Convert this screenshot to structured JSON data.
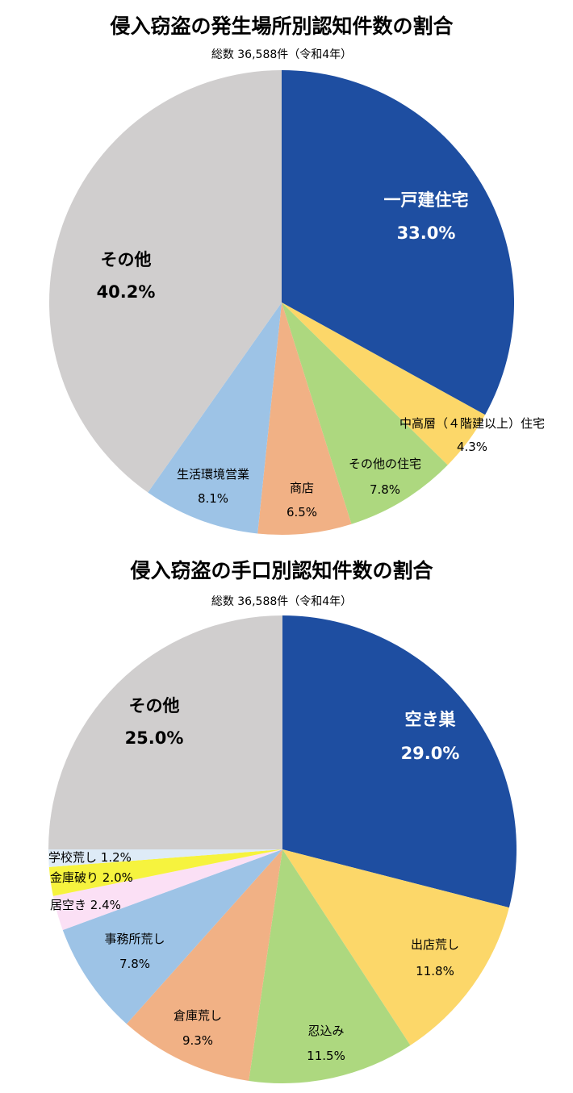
{
  "chart_data": [
    {
      "type": "pie",
      "title": "侵入窃盗の発生場所別認知件数の割合",
      "subtitle": "総数 36,588件（令和4年）",
      "unit": "%",
      "slices": [
        {
          "label": "一戸建住宅",
          "value": 33.0,
          "value_text": "33.0%",
          "color": "#1e4ea1"
        },
        {
          "label": "中高層（４階建以上）住宅",
          "value": 4.3,
          "value_text": "4.3%",
          "color": "#fcd769"
        },
        {
          "label": "その他の住宅",
          "value": 7.8,
          "value_text": "7.8%",
          "color": "#add87f"
        },
        {
          "label": "商店",
          "value": 6.5,
          "value_text": "6.5%",
          "color": "#f1b185"
        },
        {
          "label": "生活環境営業",
          "value": 8.1,
          "value_text": "8.1%",
          "color": "#9dc3e6"
        },
        {
          "label": "その他",
          "value": 40.2,
          "value_text": "40.2%",
          "color": "#d0cece"
        }
      ]
    },
    {
      "type": "pie",
      "title": "侵入窃盗の手口別認知件数の割合",
      "subtitle": "総数 36,588件（令和4年）",
      "unit": "%",
      "slices": [
        {
          "label": "空き巣",
          "value": 29.0,
          "value_text": "29.0%",
          "color": "#1e4ea1"
        },
        {
          "label": "出店荒し",
          "value": 11.8,
          "value_text": "11.8%",
          "color": "#fcd769"
        },
        {
          "label": "忍込み",
          "value": 11.5,
          "value_text": "11.5%",
          "color": "#add87f"
        },
        {
          "label": "倉庫荒し",
          "value": 9.3,
          "value_text": "9.3%",
          "color": "#f1b185"
        },
        {
          "label": "事務所荒し",
          "value": 7.8,
          "value_text": "7.8%",
          "color": "#9dc3e6"
        },
        {
          "label": "居空き",
          "value": 2.4,
          "value_text": "2.4%",
          "color": "#fbe0f5"
        },
        {
          "label": "金庫破り",
          "value": 2.0,
          "value_text": "2.0%",
          "color": "#f6f33e"
        },
        {
          "label": "学校荒し",
          "value": 1.2,
          "value_text": "1.2%",
          "color": "#deebf7"
        },
        {
          "label": "その他",
          "value": 25.0,
          "value_text": "25.0%",
          "color": "#d0cece"
        }
      ]
    }
  ]
}
